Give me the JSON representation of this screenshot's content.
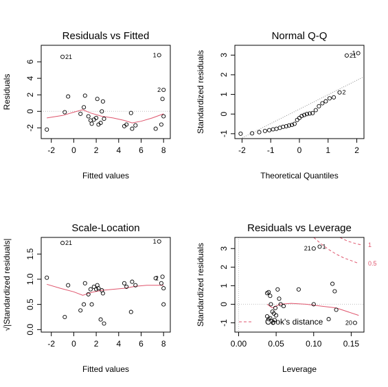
{
  "colors": {
    "smooth": "#DF536B",
    "ref": "#BEBEBE",
    "points": "#000000"
  },
  "chart_data": [
    {
      "type": "scatter",
      "title": "Residuals vs Fitted",
      "xlabel": "Fitted values",
      "ylabel": "Residuals",
      "xlim": [
        -2.9,
        8.6
      ],
      "ylim": [
        -3.3,
        8.0
      ],
      "xticks": [
        -2,
        0,
        2,
        4,
        6,
        8
      ],
      "yticks": [
        -2,
        0,
        2,
        4,
        6
      ],
      "y_tick_rotated": true,
      "hline": 0,
      "points": [
        [
          -2.4,
          -2.2
        ],
        [
          -0.8,
          -0.1
        ],
        [
          -0.5,
          1.8
        ],
        [
          0.6,
          -0.3
        ],
        [
          0.9,
          0.5
        ],
        [
          1.0,
          1.9
        ],
        [
          1.3,
          -0.6
        ],
        [
          1.5,
          -1.1
        ],
        [
          1.6,
          -1.5
        ],
        [
          1.8,
          -1.0
        ],
        [
          2.0,
          -0.8
        ],
        [
          2.1,
          1.5
        ],
        [
          2.2,
          -1.6
        ],
        [
          2.4,
          -1.4
        ],
        [
          2.5,
          0.0
        ],
        [
          2.6,
          1.2
        ],
        [
          2.7,
          -0.9
        ],
        [
          4.5,
          -1.8
        ],
        [
          4.7,
          -1.6
        ],
        [
          5.1,
          -0.2
        ],
        [
          5.2,
          -2.1
        ],
        [
          5.5,
          -1.7
        ],
        [
          7.3,
          -2.1
        ],
        [
          7.8,
          -1.6
        ],
        [
          8.0,
          -0.6
        ],
        [
          7.9,
          1.5
        ],
        [
          -1.0,
          6.6
        ],
        [
          7.6,
          6.8
        ],
        [
          8.0,
          2.6
        ]
      ],
      "smooth": [
        [
          -2.4,
          -0.8
        ],
        [
          -1,
          -0.5
        ],
        [
          0,
          -0.1
        ],
        [
          0.8,
          0.2
        ],
        [
          1.5,
          -0.2
        ],
        [
          2.5,
          -0.6
        ],
        [
          3.5,
          -0.8
        ],
        [
          4.5,
          -1.1
        ],
        [
          5.2,
          -1.4
        ],
        [
          6,
          -1.2
        ],
        [
          7,
          -0.8
        ],
        [
          8,
          -0.3
        ]
      ],
      "labels": [
        {
          "text": "21",
          "x": -1.0,
          "y": 6.6
        },
        {
          "text": "1",
          "x": 7.6,
          "y": 6.8,
          "left": true
        },
        {
          "text": "2",
          "x": 8.0,
          "y": 2.6,
          "left": true
        }
      ]
    },
    {
      "type": "scatter",
      "title": "Normal Q-Q",
      "xlabel": "Theoretical Quantiles",
      "ylabel": "Standardized residuals",
      "xlim": [
        -2.25,
        2.25
      ],
      "ylim": [
        -1.25,
        3.5
      ],
      "xticks": [
        -2,
        -1,
        0,
        1,
        2
      ],
      "yticks": [
        -1,
        0,
        1,
        2,
        3
      ],
      "y_tick_rotated": true,
      "refline": [
        [
          -2.25,
          -1.4
        ],
        [
          2.25,
          1.9
        ]
      ],
      "points": [
        [
          -2.05,
          -1.0
        ],
        [
          -1.65,
          -0.98
        ],
        [
          -1.4,
          -0.92
        ],
        [
          -1.2,
          -0.86
        ],
        [
          -1.05,
          -0.82
        ],
        [
          -0.92,
          -0.78
        ],
        [
          -0.8,
          -0.75
        ],
        [
          -0.68,
          -0.7
        ],
        [
          -0.57,
          -0.65
        ],
        [
          -0.46,
          -0.62
        ],
        [
          -0.36,
          -0.58
        ],
        [
          -0.26,
          -0.55
        ],
        [
          -0.17,
          -0.5
        ],
        [
          -0.08,
          -0.3
        ],
        [
          0.0,
          -0.2
        ],
        [
          0.08,
          -0.1
        ],
        [
          0.17,
          -0.05
        ],
        [
          0.26,
          0.0
        ],
        [
          0.36,
          0.03
        ],
        [
          0.46,
          0.05
        ],
        [
          0.57,
          0.2
        ],
        [
          0.68,
          0.4
        ],
        [
          0.8,
          0.55
        ],
        [
          0.92,
          0.65
        ],
        [
          1.05,
          0.8
        ],
        [
          1.2,
          0.85
        ],
        [
          1.4,
          1.1
        ],
        [
          1.65,
          2.98
        ],
        [
          2.05,
          3.1
        ]
      ],
      "labels": [
        {
          "text": "21",
          "x": 1.65,
          "y": 2.98
        },
        {
          "text": "1",
          "x": 2.05,
          "y": 3.1,
          "left": true
        },
        {
          "text": "2",
          "x": 1.4,
          "y": 1.1
        }
      ]
    },
    {
      "type": "scatter",
      "title": "Scale-Location",
      "xlabel": "Fitted values",
      "ylabel": "√|Standardized residuals|",
      "xlim": [
        -2.9,
        8.6
      ],
      "ylim": [
        -0.05,
        1.83
      ],
      "xticks": [
        -2,
        0,
        2,
        4,
        6,
        8
      ],
      "yticks": [
        0.0,
        0.5,
        1.0,
        1.5
      ],
      "ytick_labels": [
        "0.0",
        "0.5",
        "1.0",
        "1.5"
      ],
      "y_tick_rotated": true,
      "points": [
        [
          -2.4,
          1.03
        ],
        [
          -0.8,
          0.25
        ],
        [
          -0.5,
          0.88
        ],
        [
          0.6,
          0.38
        ],
        [
          0.9,
          0.5
        ],
        [
          1.0,
          0.92
        ],
        [
          1.3,
          0.7
        ],
        [
          1.5,
          0.8
        ],
        [
          1.6,
          0.5
        ],
        [
          1.8,
          0.85
        ],
        [
          2.0,
          0.8
        ],
        [
          2.1,
          0.88
        ],
        [
          2.2,
          0.82
        ],
        [
          2.4,
          0.2
        ],
        [
          2.5,
          0.78
        ],
        [
          2.6,
          0.72
        ],
        [
          2.7,
          0.12
        ],
        [
          4.5,
          0.92
        ],
        [
          4.7,
          0.85
        ],
        [
          5.1,
          0.35
        ],
        [
          5.2,
          0.95
        ],
        [
          5.5,
          0.88
        ],
        [
          7.3,
          1.02
        ],
        [
          7.8,
          0.92
        ],
        [
          8.0,
          0.82
        ],
        [
          7.9,
          1.05
        ],
        [
          8.0,
          0.5
        ],
        [
          -1.0,
          1.72
        ],
        [
          7.6,
          1.75
        ]
      ],
      "smooth": [
        [
          -2.4,
          0.9
        ],
        [
          -1.2,
          0.82
        ],
        [
          0,
          0.75
        ],
        [
          0.8,
          0.68
        ],
        [
          1.6,
          0.74
        ],
        [
          2.5,
          0.78
        ],
        [
          3.5,
          0.8
        ],
        [
          4.5,
          0.82
        ],
        [
          5.5,
          0.86
        ],
        [
          6.5,
          0.88
        ],
        [
          8,
          0.88
        ]
      ],
      "labels": [
        {
          "text": "21",
          "x": -1.0,
          "y": 1.72
        },
        {
          "text": "1",
          "x": 7.6,
          "y": 1.75,
          "left": true
        },
        {
          "text": "2",
          "x": 7.8,
          "y": 1.02,
          "left": true
        }
      ]
    },
    {
      "type": "scatter",
      "title": "Residuals vs Leverage",
      "xlabel": "Leverage",
      "ylabel": "Standardized residuals",
      "xlim": [
        -0.005,
        0.167
      ],
      "ylim": [
        -1.5,
        3.6
      ],
      "xticks": [
        0.0,
        0.05,
        0.1,
        0.15
      ],
      "xtick_labels": [
        "0.00",
        "0.05",
        "0.10",
        "0.15"
      ],
      "yticks": [
        -1,
        0,
        1,
        2,
        3
      ],
      "y_tick_rotated": true,
      "hline": 0,
      "vline": 0,
      "points": [
        [
          0.038,
          0.6
        ],
        [
          0.04,
          0.65
        ],
        [
          0.042,
          0.45
        ],
        [
          0.043,
          0.0
        ],
        [
          0.045,
          -0.4
        ],
        [
          0.047,
          -0.5
        ],
        [
          0.049,
          -0.2
        ],
        [
          0.052,
          0.8
        ],
        [
          0.054,
          0.3
        ],
        [
          0.056,
          0.0
        ],
        [
          0.06,
          -0.1
        ],
        [
          0.08,
          0.8
        ],
        [
          0.1,
          0.0
        ],
        [
          0.125,
          1.1
        ],
        [
          0.128,
          0.7
        ],
        [
          0.13,
          -0.3
        ],
        [
          0.12,
          -0.8
        ],
        [
          0.038,
          -0.65
        ],
        [
          0.04,
          -0.8
        ],
        [
          0.042,
          -0.75
        ],
        [
          0.044,
          -0.9
        ],
        [
          0.046,
          -1.0
        ],
        [
          0.048,
          -0.85
        ],
        [
          0.05,
          -0.6
        ],
        [
          0.155,
          -1.0
        ],
        [
          0.1,
          3.0
        ],
        [
          0.108,
          3.1
        ]
      ],
      "smooth": [
        [
          0.038,
          0.0
        ],
        [
          0.045,
          -0.2
        ],
        [
          0.055,
          0.0
        ],
        [
          0.07,
          0.05
        ],
        [
          0.09,
          0.0
        ],
        [
          0.11,
          -0.1
        ],
        [
          0.13,
          -0.2
        ],
        [
          0.16,
          -0.6
        ]
      ],
      "cooks": [
        {
          "level": "0.5",
          "upper": [
            [
              0.1,
              3.6
            ],
            [
              0.11,
              3.25
            ],
            [
              0.12,
              2.95
            ],
            [
              0.13,
              2.7
            ],
            [
              0.14,
              2.5
            ],
            [
              0.15,
              2.35
            ],
            [
              0.16,
              2.2
            ]
          ],
          "lower": [
            [
              0.14,
              -2.0
            ],
            [
              0.16,
              -2.2
            ]
          ]
        },
        {
          "level": "1",
          "upper": [
            [
              0.135,
              3.6
            ],
            [
              0.145,
              3.4
            ],
            [
              0.155,
              3.28
            ],
            [
              0.163,
              3.2
            ]
          ]
        }
      ],
      "cooks_legend": "Cook's distance",
      "labels": [
        {
          "text": "21",
          "x": 0.1,
          "y": 3.0,
          "left": true
        },
        {
          "text": "1",
          "x": 0.108,
          "y": 3.1
        },
        {
          "text": "20",
          "x": 0.155,
          "y": -1.0,
          "left": true
        }
      ]
    }
  ]
}
